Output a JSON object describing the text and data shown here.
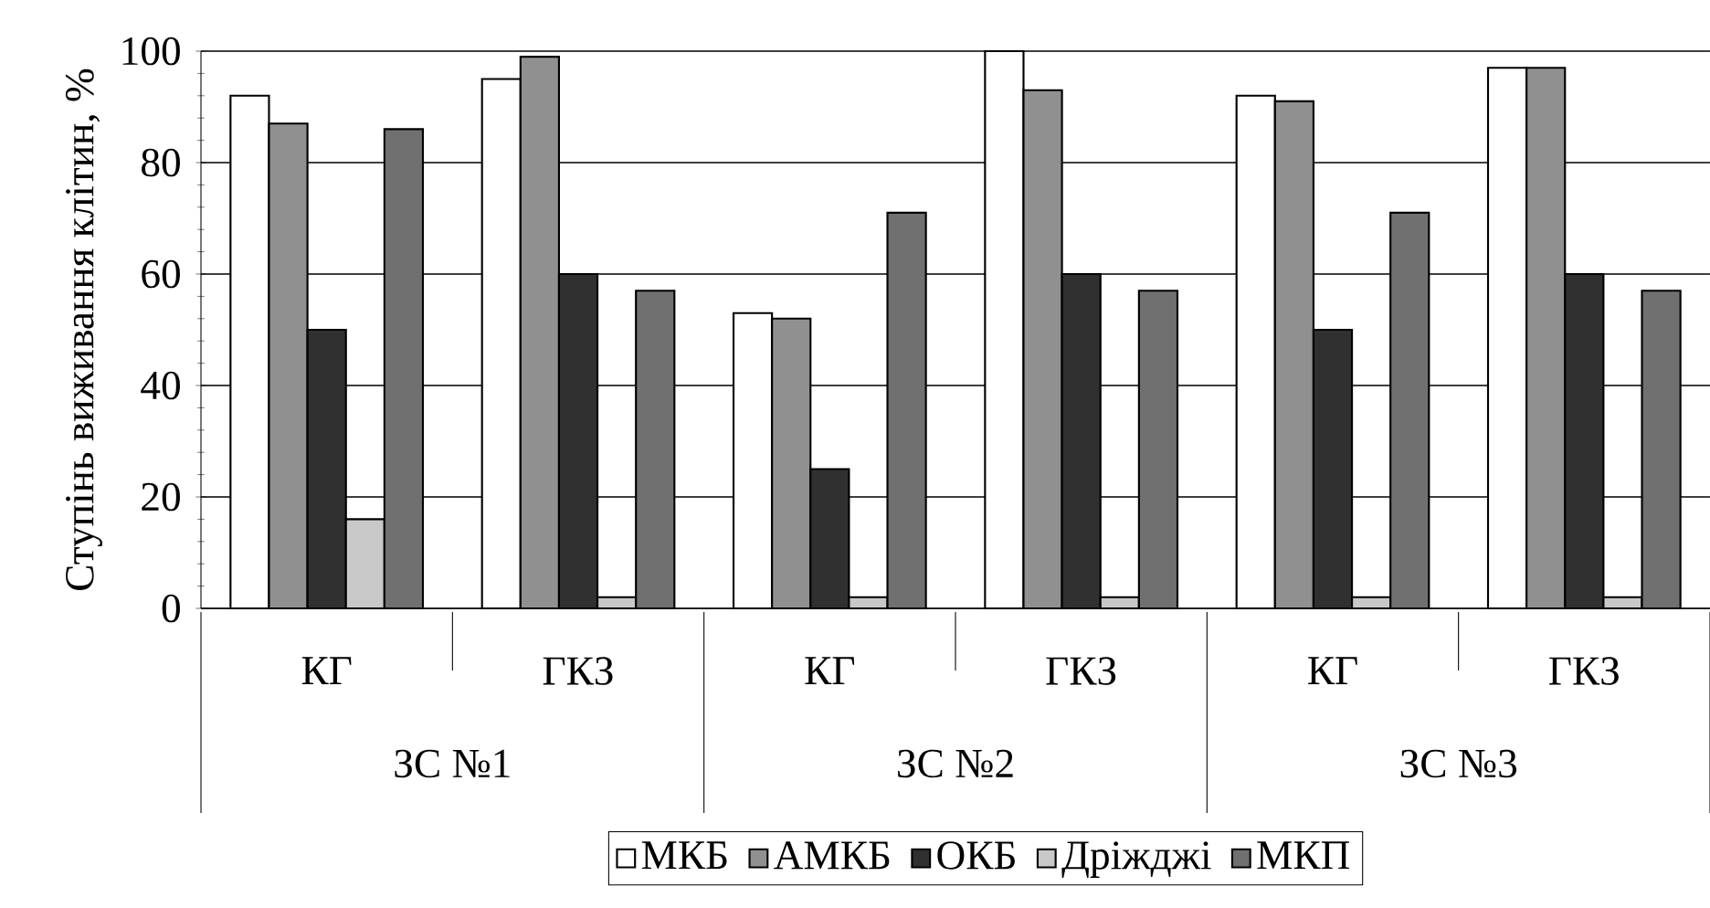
{
  "chart_data": {
    "type": "bar",
    "ylabel": "Ступінь виживання клітин, %",
    "categories": [
      "КГ",
      "ГКЗ",
      "КГ",
      "ГКЗ",
      "КГ",
      "ГКЗ"
    ],
    "annotations": [
      "ЗС №1",
      "ЗС №2",
      "ЗС №3"
    ],
    "series": [
      {
        "name": "МКБ",
        "color": "#ffffff",
        "values": [
          92,
          95,
          53,
          100,
          92,
          97
        ]
      },
      {
        "name": "АМКБ",
        "color": "#909090",
        "values": [
          87,
          99,
          52,
          93,
          91,
          97
        ]
      },
      {
        "name": "ОКБ",
        "color": "#303030",
        "values": [
          50,
          60,
          25,
          60,
          50,
          60
        ]
      },
      {
        "name": "Дріжджі",
        "color": "#c8c8c8",
        "values": [
          16,
          2,
          2,
          2,
          2,
          2
        ]
      },
      {
        "name": "МКП",
        "color": "#707070",
        "values": [
          86,
          57,
          71,
          57,
          71,
          57
        ]
      }
    ],
    "ylim": [
      0,
      100
    ],
    "yticks": [
      0,
      20,
      40,
      60,
      80,
      100
    ],
    "grid": "y",
    "legend": "bottom"
  }
}
